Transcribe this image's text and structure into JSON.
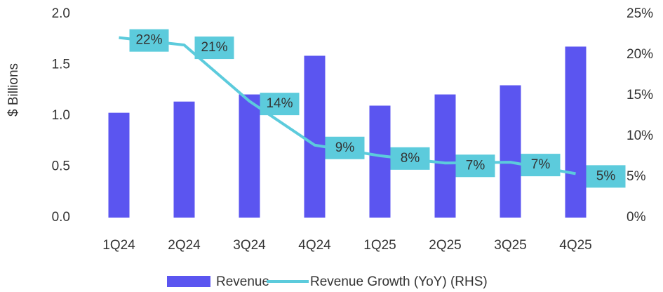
{
  "chart_data": {
    "type": "bar_line",
    "y_label": "$ Billions",
    "categories": [
      "1Q24",
      "2Q24",
      "3Q24",
      "4Q24",
      "1Q25",
      "2Q25",
      "3Q25",
      "4Q25"
    ],
    "series": [
      {
        "name": "Revenue",
        "type": "bar",
        "color": "#5b55f0",
        "values": [
          1.03,
          1.14,
          1.21,
          1.59,
          1.1,
          1.21,
          1.3,
          1.68
        ]
      },
      {
        "name": "Revenue Growth (YoY) (RHS)",
        "type": "line",
        "axis": "y2",
        "color": "#5ccbdc",
        "values": [
          22.1,
          21.2,
          14.3,
          8.9,
          7.6,
          6.7,
          6.8,
          5.4
        ],
        "value_labels": [
          "22%",
          "21%",
          "14%",
          "9%",
          "8%",
          "7%",
          "7%",
          "5%"
        ]
      }
    ],
    "ylim": [
      0,
      2
    ],
    "yticks": [
      {
        "value": 0,
        "label": "0.0"
      },
      {
        "value": 0.5,
        "label": "0.5"
      },
      {
        "value": 1,
        "label": "1.0"
      },
      {
        "value": 1.5,
        "label": "1.5"
      },
      {
        "value": 2,
        "label": "2.0"
      }
    ],
    "y2lim": [
      0,
      25
    ],
    "y2ticks": [
      {
        "value": 0,
        "label": "0%"
      },
      {
        "value": 5,
        "label": "5%"
      },
      {
        "value": 10,
        "label": "10%"
      },
      {
        "value": 15,
        "label": "15%"
      },
      {
        "value": 20,
        "label": "20%"
      },
      {
        "value": 25,
        "label": "25%"
      }
    ],
    "legend": "bottom"
  }
}
